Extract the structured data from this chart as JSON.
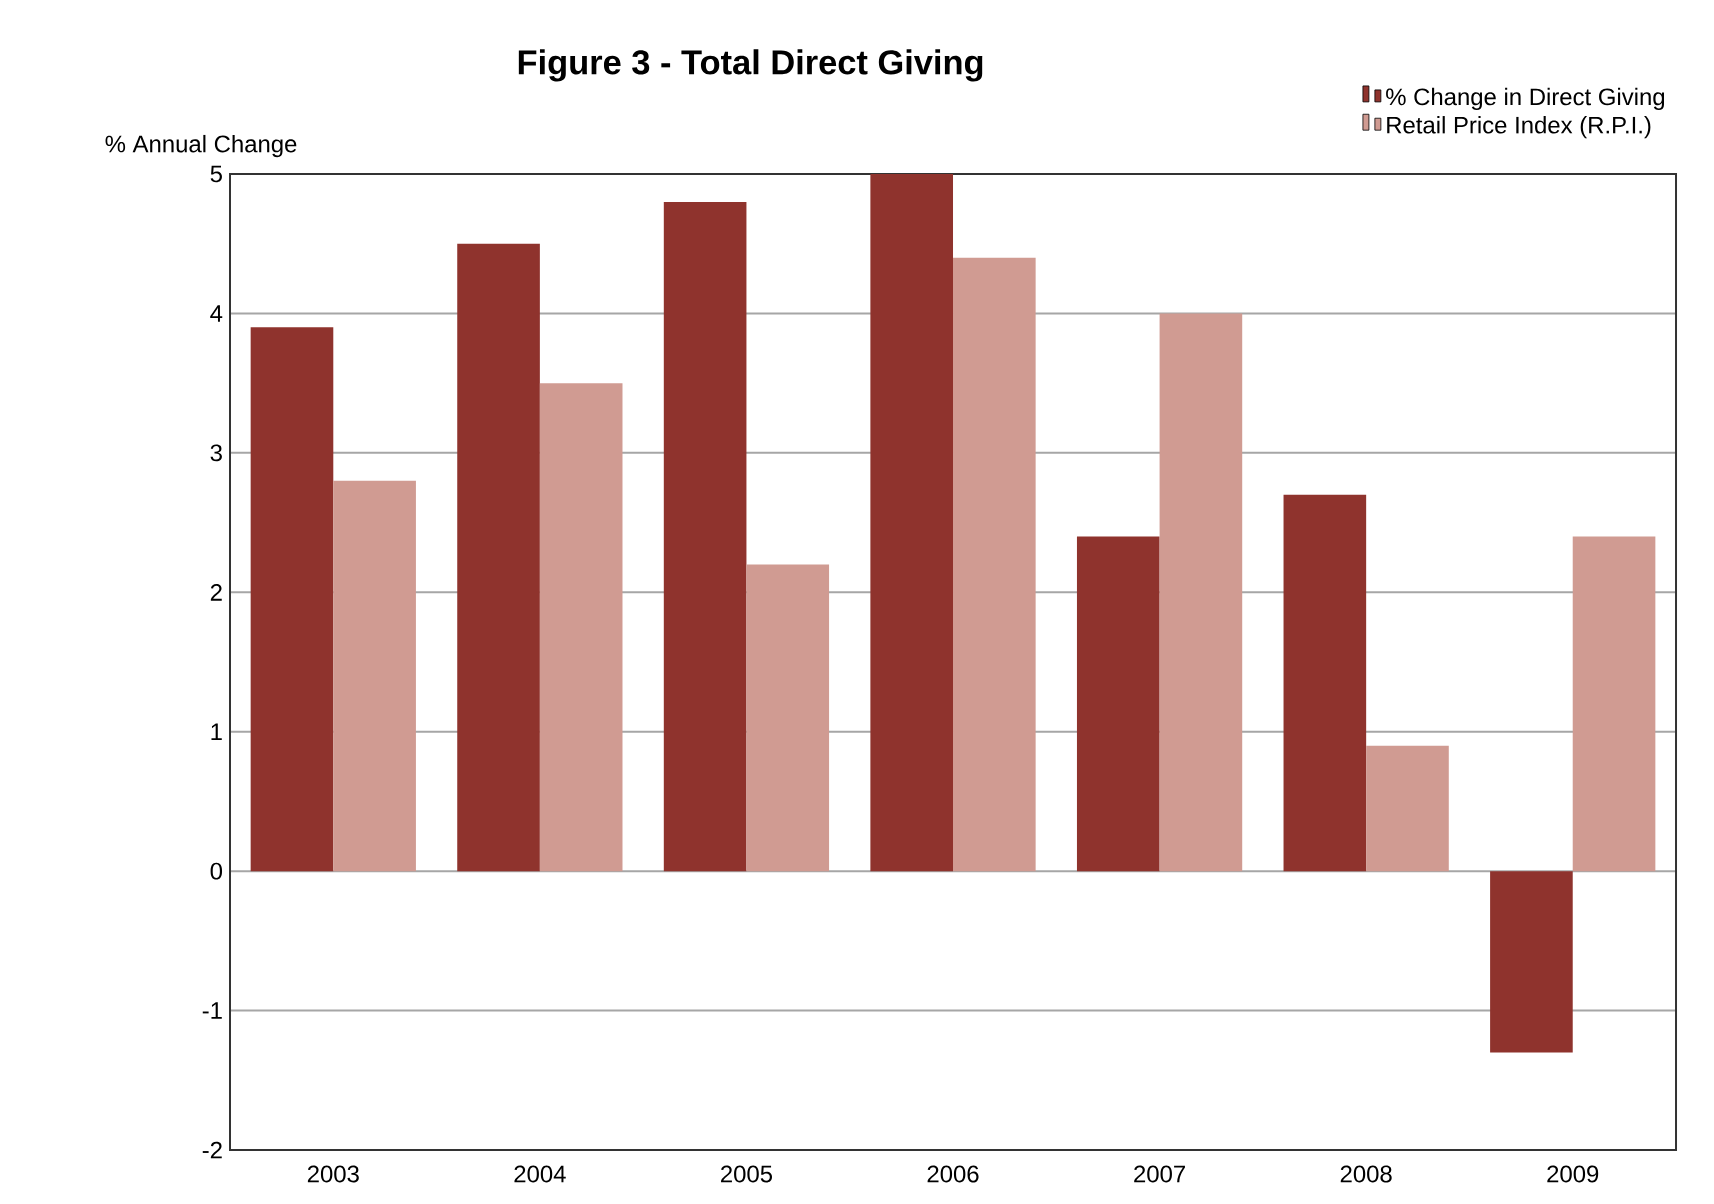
{
  "chart_data": {
    "type": "bar",
    "title": "Figure 3 - Total Direct Giving",
    "ylabel": "% Annual Change",
    "categories": [
      "2003",
      "2004",
      "2005",
      "2006",
      "2007",
      "2008",
      "2009"
    ],
    "series": [
      {
        "name": "% Change in Direct Giving",
        "color": "#8f332d",
        "values": [
          3.9,
          4.5,
          4.8,
          5.0,
          2.4,
          2.7,
          -1.3
        ]
      },
      {
        "name": "Retail Price Index (R.P.I.)",
        "color": "#d09b92",
        "values": [
          2.8,
          3.5,
          2.2,
          4.4,
          4.0,
          0.9,
          2.4
        ]
      }
    ],
    "ylim": [
      -2,
      5
    ],
    "yticks": [
      -2,
      -1,
      0,
      1,
      2,
      3,
      4,
      5
    ],
    "grid": "y",
    "legend": "top right"
  }
}
